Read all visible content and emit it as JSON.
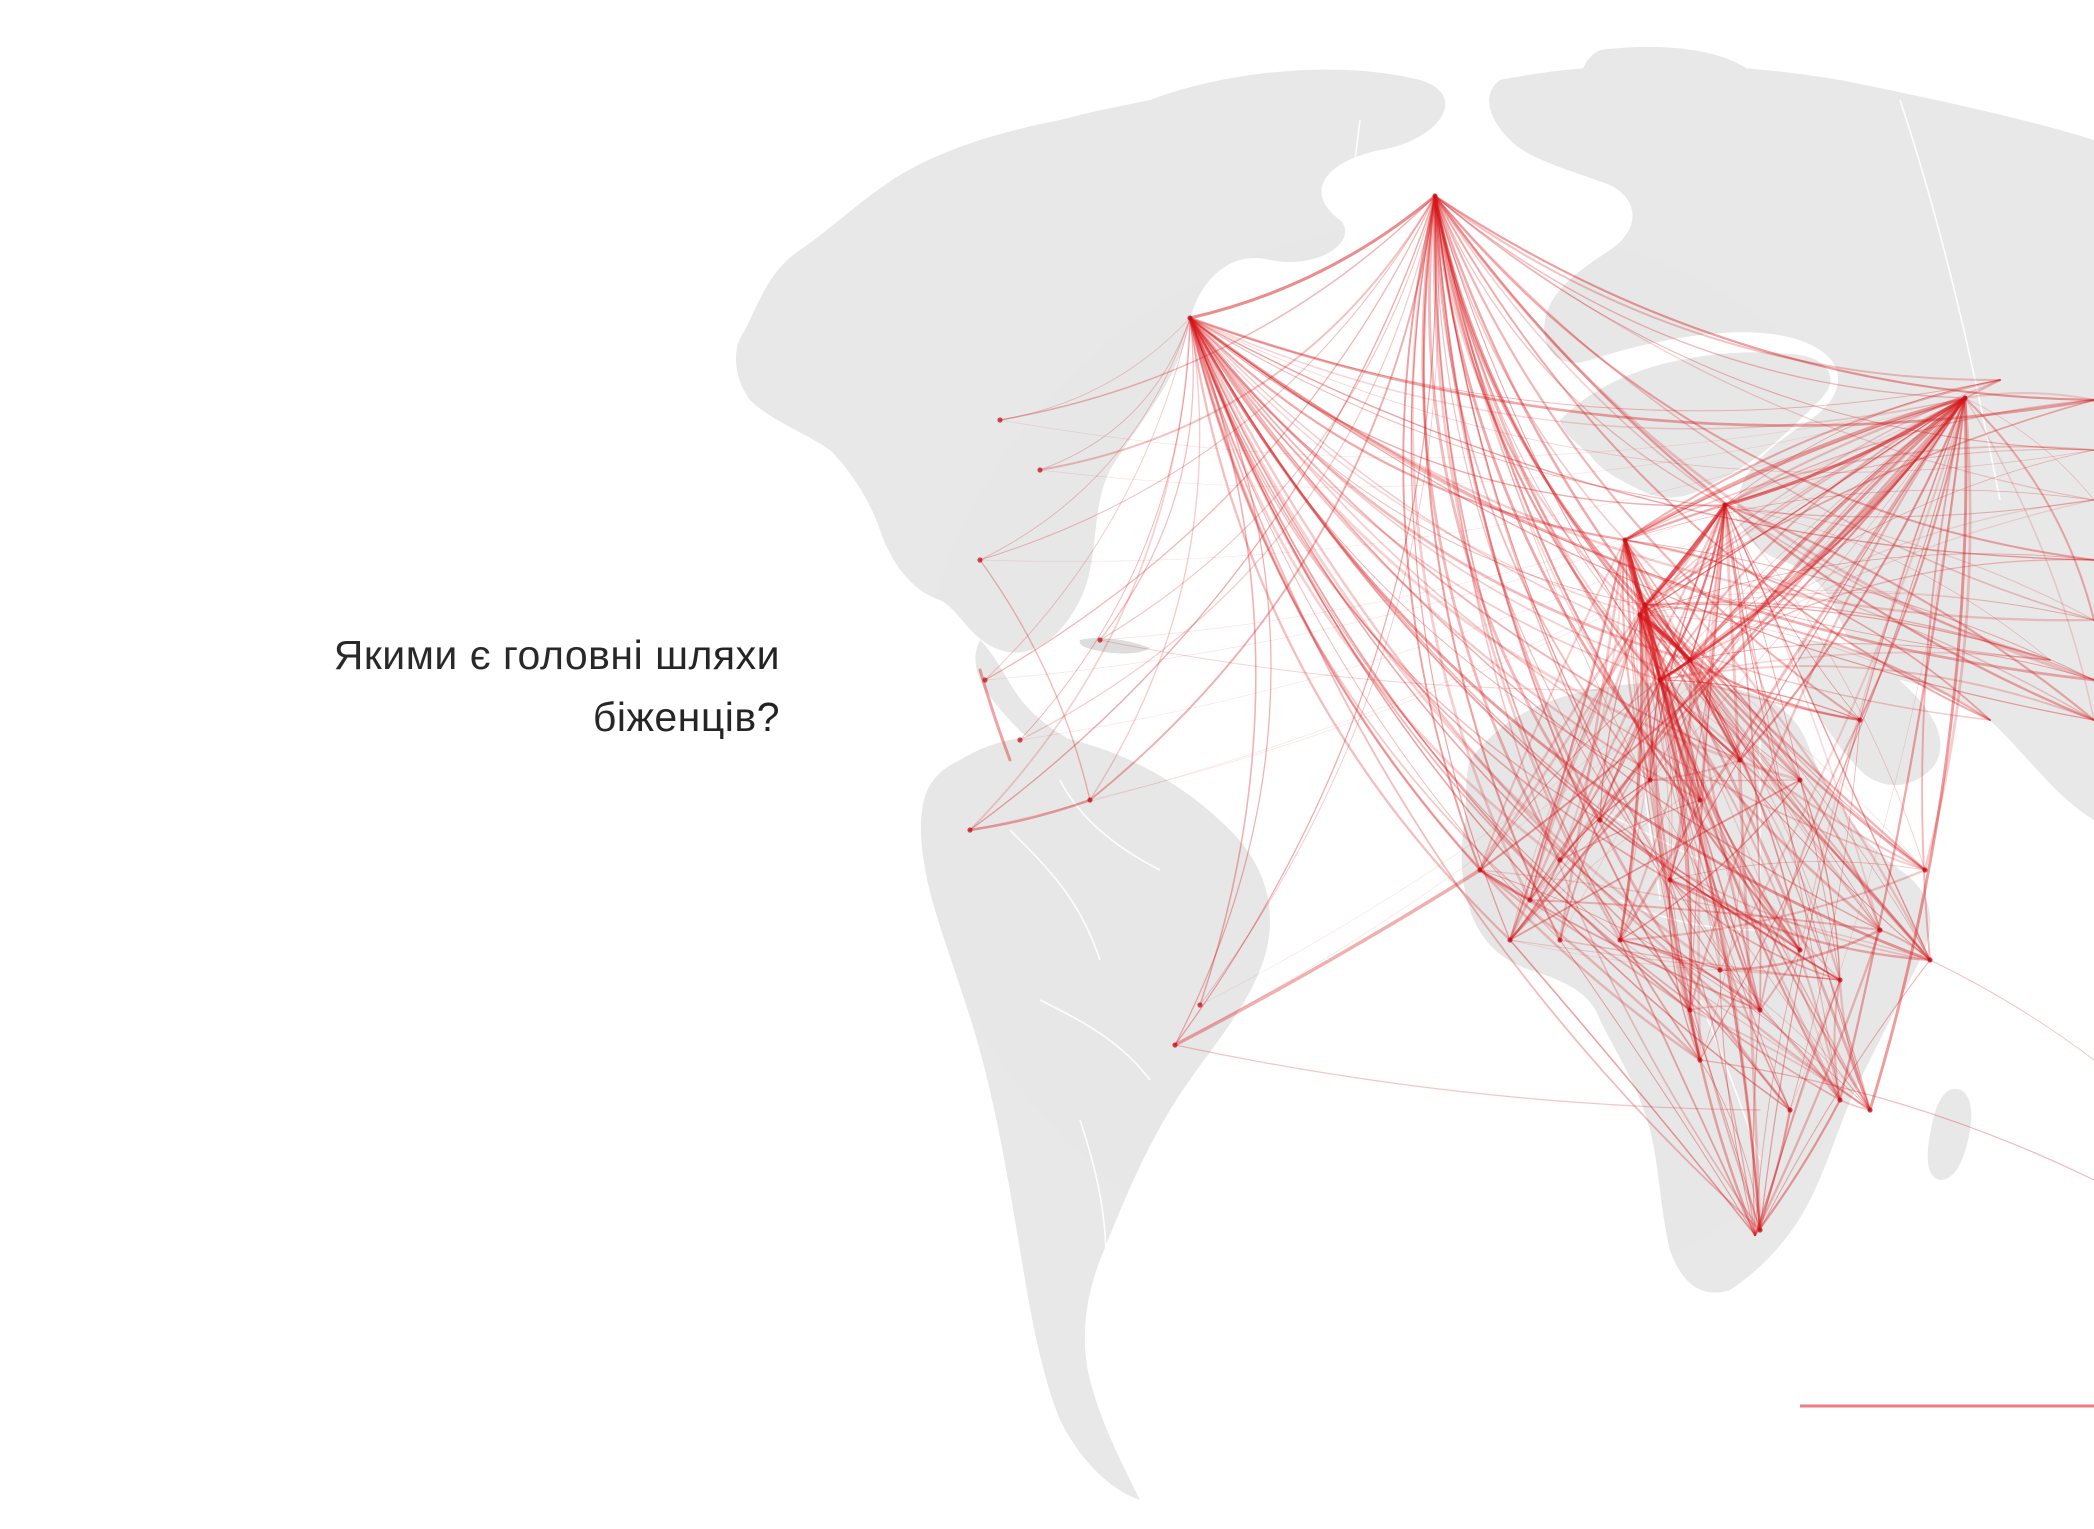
{
  "headline": {
    "line1": "Якими є головні шляхи",
    "line2": "біженців?"
  },
  "colors": {
    "background": "#ffffff",
    "land": "#e6e6e6",
    "borders": "#ffffff",
    "flows": "#d7191c",
    "text": "#111111"
  },
  "map": {
    "projection": "orthographic",
    "subject": "refugee-routes",
    "flow_color": "#d7191c"
  }
}
